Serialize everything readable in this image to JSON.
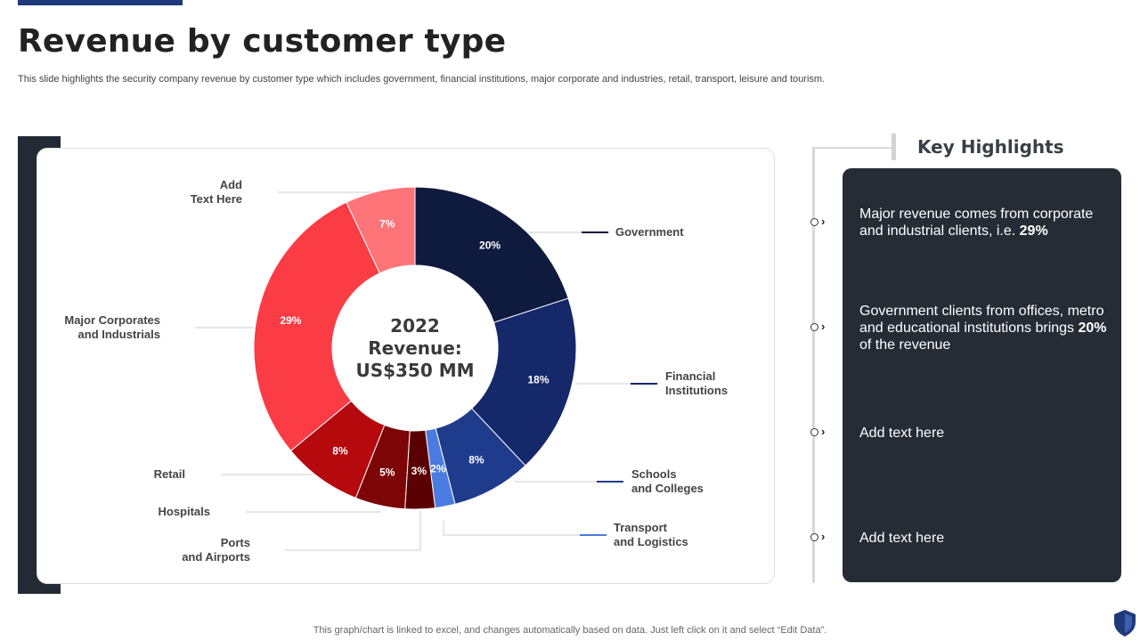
{
  "title": "Revenue by customer type",
  "subtitle": "This slide highlights the security company revenue by customer type which includes government, financial institutions, major corporate and industries, retail, transport, leisure and tourism.",
  "footer": "This graph/chart is linked to excel,  and changes automatically based on data. Just left click on it and select “Edit Data”.",
  "key_highlights": {
    "title": "Key Highlights",
    "items": [
      {
        "text": "Major revenue comes from corporate and industrial clients, i.e. ",
        "bold": "29%",
        "after": ""
      },
      {
        "text": "Government clients from offices, metro and educational institutions brings ",
        "bold": "20%",
        "after": " of the revenue"
      },
      {
        "text": "Add text here",
        "bold": "",
        "after": ""
      },
      {
        "text": "Add text here",
        "bold": "",
        "after": ""
      }
    ]
  },
  "colors": {
    "government": "#0e1a3e",
    "financial": "#15286a",
    "schools": "#1f3c8c",
    "transport": "#4a7be0",
    "ports": "#5a0000",
    "hospitals": "#7d0505",
    "retail": "#b5090e",
    "corporates": "#fb3c44",
    "add_text": "#fe7478",
    "panel": "#262c35"
  },
  "chart_data": {
    "type": "donut",
    "center_label": [
      "2022",
      "Revenue:",
      "US$350 MM"
    ],
    "slices": [
      {
        "label": "Government",
        "value": 20,
        "value_label": "20%"
      },
      {
        "label": "Financial Institutions",
        "value": 18,
        "value_label": "18%"
      },
      {
        "label": "Schools and Colleges",
        "value": 8,
        "value_label": "8%"
      },
      {
        "label": "Transport and Logistics",
        "value": 2,
        "value_label": "2%"
      },
      {
        "label": "Ports and Airports",
        "value": 3,
        "value_label": "3%"
      },
      {
        "label": "Hospitals",
        "value": 5,
        "value_label": "5%"
      },
      {
        "label": "Retail",
        "value": 8,
        "value_label": "8%"
      },
      {
        "label": "Major Corporates and Industrials",
        "value": 29,
        "value_label": "29%"
      },
      {
        "label": "Add Text Here",
        "value": 7,
        "value_label": "7%"
      }
    ],
    "legend_lines": [
      [
        "Government"
      ],
      [
        "Financial",
        "Institutions"
      ],
      [
        "Schools",
        "and Colleges"
      ],
      [
        "Transport",
        "and Logistics"
      ],
      [
        "Ports",
        "and Airports"
      ],
      [
        "Hospitals"
      ],
      [
        "Retail"
      ],
      [
        "Major Corporates",
        "and Industrials"
      ],
      [
        "Add",
        "Text Here"
      ]
    ]
  }
}
